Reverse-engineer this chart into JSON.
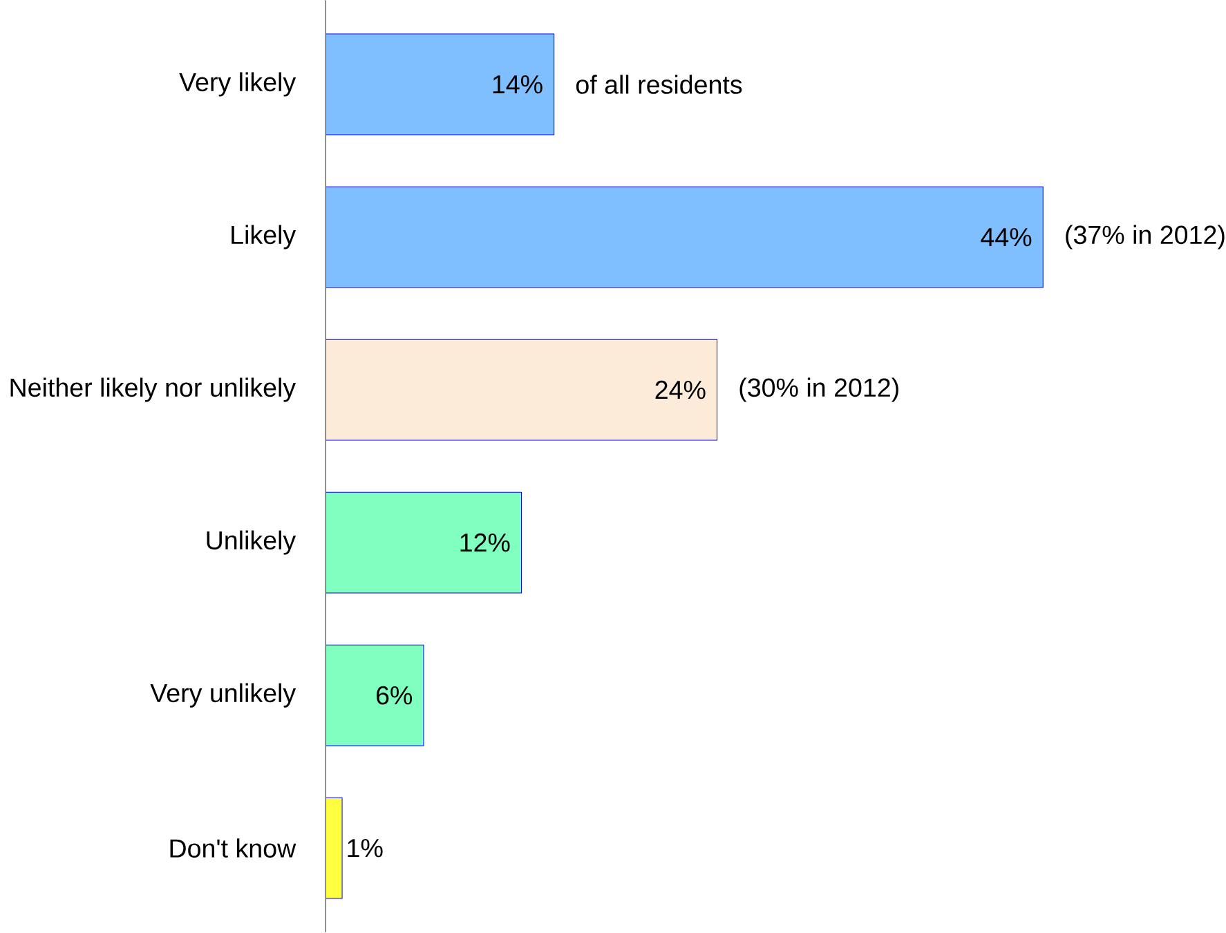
{
  "chart_data": {
    "type": "bar",
    "orientation": "horizontal",
    "categories": [
      "Very likely",
      "Likely",
      "Neither likely nor unlikely",
      "Unlikely",
      "Very unlikely",
      "Don't know"
    ],
    "values": [
      14,
      44,
      24,
      12,
      6,
      1
    ],
    "value_labels": [
      "14%",
      "44%",
      "24%",
      "12%",
      "6%",
      "1%"
    ],
    "colors": [
      "#80bfff",
      "#80bfff",
      "#fdebd9",
      "#80ffc0",
      "#80ffc0",
      "#ffff40"
    ],
    "annotations": [
      {
        "text": "of all residents",
        "x": 14,
        "y": "Very likely"
      },
      {
        "text": "(37% in 2012)",
        "x": 44,
        "y": "Likely"
      },
      {
        "text": "(30% in 2012)",
        "x": 24,
        "y": "Neither likely nor unlikely"
      }
    ]
  }
}
